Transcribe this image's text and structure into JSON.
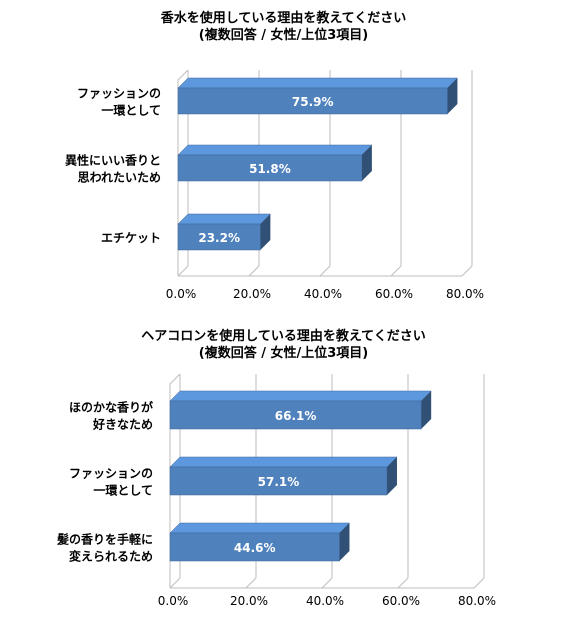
{
  "chart_data": [
    {
      "type": "bar",
      "orientation": "horizontal",
      "title": "香水を使用している理由を教えてください",
      "subtitle": "(複数回答 / 女性/上位3項目)",
      "categories": [
        [
          "ファッションの",
          "一環として"
        ],
        [
          "異性にいい香りと",
          "思われたいため"
        ],
        [
          "エチケット"
        ]
      ],
      "values": [
        75.9,
        51.8,
        23.2
      ],
      "value_labels": [
        "75.9%",
        "51.8%",
        "23.2%"
      ],
      "xlim": [
        0,
        80
      ],
      "xticks": [
        "0.0%",
        "20.0%",
        "40.0%",
        "60.0%",
        "80.0%"
      ],
      "grid": true,
      "style": "3d",
      "bar_color": "#4f81bd"
    },
    {
      "type": "bar",
      "orientation": "horizontal",
      "title": "ヘアコロンを使用している理由を教えてください",
      "subtitle": "(複数回答 / 女性/上位3項目)",
      "categories": [
        [
          "ほのかな香りが",
          "好きなため"
        ],
        [
          "ファッションの",
          "一環として"
        ],
        [
          "髪の香りを手軽に",
          "変えられるため"
        ]
      ],
      "values": [
        66.1,
        57.1,
        44.6
      ],
      "value_labels": [
        "66.1%",
        "57.1%",
        "44.6%"
      ],
      "xlim": [
        0,
        80
      ],
      "xticks": [
        "0.0%",
        "20.0%",
        "40.0%",
        "60.0%",
        "80.0%"
      ],
      "grid": true,
      "style": "3d",
      "bar_color": "#4f81bd"
    }
  ]
}
